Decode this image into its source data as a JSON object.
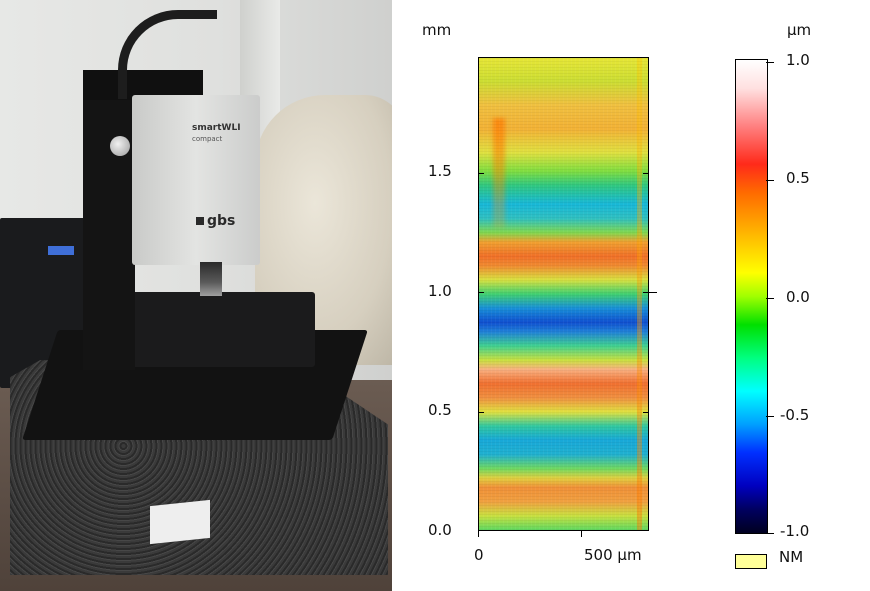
{
  "photo": {
    "device_brand": "smartWLI",
    "device_sub": "compact",
    "device_logo": "gbs"
  },
  "map_plot": {
    "y_unit_label": "mm",
    "y_ticks": [
      "0.0",
      "0.5",
      "1.0",
      "1.5"
    ],
    "x_ticks": [
      "0",
      "500 µm"
    ],
    "colorbar_colors": [
      "#ffffff",
      "#ff1a1a",
      "#ff8000",
      "#ffff00",
      "#00d000",
      "#00ffff",
      "#0030ff",
      "#000040"
    ]
  },
  "colorbar": {
    "unit_label": "µm",
    "ticks": [
      "1.0",
      "0.5",
      "0.0",
      "-0.5",
      "-1.0"
    ]
  },
  "legend": {
    "label": "NM",
    "swatch_color": "#ffff99"
  }
}
